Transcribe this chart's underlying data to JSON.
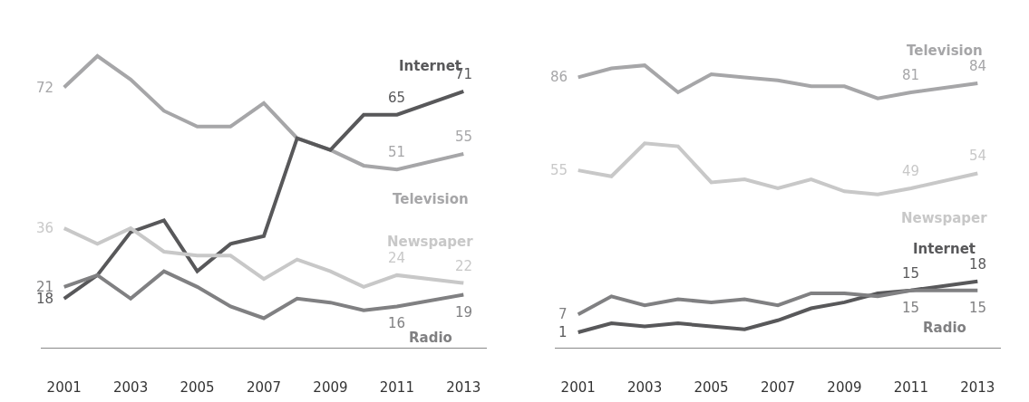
{
  "chart_data": [
    {
      "type": "line",
      "x": [
        2001,
        2002,
        2003,
        2004,
        2005,
        2006,
        2007,
        2008,
        2009,
        2010,
        2011,
        2013
      ],
      "xlim": [
        2000.3,
        2013.7
      ],
      "xticks": [
        2001,
        2003,
        2005,
        2007,
        2009,
        2011,
        2013
      ],
      "series": [
        {
          "name": "Television",
          "color": "#a6a6a8",
          "values": [
            72,
            80,
            74,
            66,
            62,
            62,
            68,
            59,
            56,
            52,
            51,
            55
          ],
          "value_labels": [
            "72",
            null,
            null,
            null,
            null,
            null,
            null,
            null,
            null,
            null,
            "51",
            "55"
          ]
        },
        {
          "name": "Internet",
          "color": "#58585a",
          "values": [
            18,
            24,
            35,
            38,
            25,
            32,
            34,
            59,
            56,
            65,
            65,
            71
          ],
          "value_labels": [
            "18",
            null,
            null,
            null,
            null,
            null,
            null,
            null,
            null,
            null,
            "65",
            "71"
          ]
        },
        {
          "name": "Newspaper",
          "color": "#c8c8c8",
          "values": [
            36,
            32,
            36,
            30,
            29,
            29,
            23,
            28,
            25,
            21,
            24,
            22
          ],
          "value_labels": [
            "36",
            null,
            null,
            null,
            null,
            null,
            null,
            null,
            null,
            null,
            "24",
            "22"
          ]
        },
        {
          "name": "Radio",
          "color": "#808082",
          "values": [
            21,
            24,
            18,
            25,
            21,
            16,
            13,
            18,
            17,
            15,
            16,
            19
          ],
          "value_labels": [
            "21",
            null,
            null,
            null,
            null,
            null,
            null,
            null,
            null,
            null,
            "16",
            "19"
          ]
        }
      ]
    },
    {
      "type": "line",
      "x": [
        2001,
        2002,
        2003,
        2004,
        2005,
        2006,
        2007,
        2008,
        2009,
        2010,
        2011,
        2013
      ],
      "xlim": [
        2000.3,
        2013.7
      ],
      "xticks": [
        2001,
        2003,
        2005,
        2007,
        2009,
        2011,
        2013
      ],
      "series": [
        {
          "name": "Television",
          "color": "#a6a6a8",
          "values": [
            86,
            89,
            90,
            81,
            87,
            86,
            85,
            83,
            83,
            79,
            81,
            84
          ],
          "value_labels": [
            "86",
            null,
            null,
            null,
            null,
            null,
            null,
            null,
            null,
            null,
            "81",
            "84"
          ]
        },
        {
          "name": "Internet",
          "color": "#58585a",
          "values": [
            1,
            4,
            3,
            4,
            3,
            2,
            5,
            9,
            11,
            14,
            15,
            18
          ],
          "value_labels": [
            "1",
            null,
            null,
            null,
            null,
            null,
            null,
            null,
            null,
            null,
            "15",
            "18"
          ]
        },
        {
          "name": "Newspaper",
          "color": "#c8c8c8",
          "values": [
            55,
            53,
            64,
            63,
            51,
            52,
            49,
            52,
            48,
            47,
            49,
            54
          ],
          "value_labels": [
            "55",
            null,
            null,
            null,
            null,
            null,
            null,
            null,
            null,
            null,
            "49",
            "54"
          ]
        },
        {
          "name": "Radio",
          "color": "#808082",
          "values": [
            7,
            13,
            10,
            12,
            11,
            12,
            10,
            14,
            14,
            13,
            15,
            15
          ],
          "value_labels": [
            "7",
            null,
            null,
            null,
            null,
            null,
            null,
            null,
            null,
            null,
            "15",
            "15"
          ]
        }
      ]
    }
  ]
}
